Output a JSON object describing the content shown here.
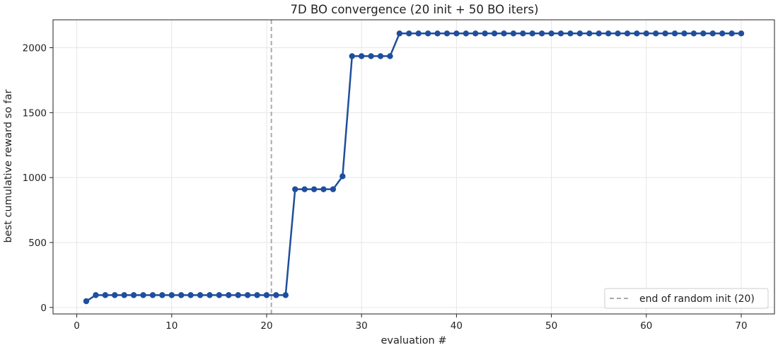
{
  "chart_data": {
    "type": "line",
    "title": "7D BO convergence  (20 init + 50 BO iters)",
    "xlabel": "evaluation #",
    "ylabel": "best cumulative reward so far",
    "xlim": [
      -2.5,
      73.5
    ],
    "ylim": [
      -50,
      2215
    ],
    "xticks": [
      0,
      10,
      20,
      30,
      40,
      50,
      60,
      70
    ],
    "yticks": [
      0,
      500,
      1000,
      1500,
      2000
    ],
    "grid": true,
    "legend_position": "lower right",
    "colors": {
      "series": "#1f4e9c",
      "vline": "#aaaaaa",
      "grid": "#e6e6e6",
      "axis": "#222222"
    },
    "series": [
      {
        "name": "",
        "x": [
          1,
          2,
          3,
          4,
          5,
          6,
          7,
          8,
          9,
          10,
          11,
          12,
          13,
          14,
          15,
          16,
          17,
          18,
          19,
          20,
          21,
          22,
          23,
          24,
          25,
          26,
          27,
          28,
          29,
          30,
          31,
          32,
          33,
          34,
          35,
          36,
          37,
          38,
          39,
          40,
          41,
          42,
          43,
          44,
          45,
          46,
          47,
          48,
          49,
          50,
          51,
          52,
          53,
          54,
          55,
          56,
          57,
          58,
          59,
          60,
          61,
          62,
          63,
          64,
          65,
          66,
          67,
          68,
          69,
          70
        ],
        "y": [
          48,
          95,
          95,
          95,
          95,
          95,
          95,
          95,
          95,
          95,
          95,
          95,
          95,
          95,
          95,
          95,
          95,
          95,
          95,
          95,
          95,
          95,
          910,
          910,
          910,
          910,
          910,
          1010,
          1935,
          1935,
          1935,
          1935,
          1935,
          2110,
          2110,
          2110,
          2110,
          2110,
          2110,
          2110,
          2110,
          2110,
          2110,
          2110,
          2110,
          2110,
          2110,
          2110,
          2110,
          2110,
          2110,
          2110,
          2110,
          2110,
          2110,
          2110,
          2110,
          2110,
          2110,
          2110,
          2110,
          2110,
          2110,
          2110,
          2110,
          2110,
          2110,
          2110,
          2110,
          2110
        ]
      }
    ],
    "vline": {
      "x": 20.5,
      "label": "end of random init (20)"
    }
  }
}
